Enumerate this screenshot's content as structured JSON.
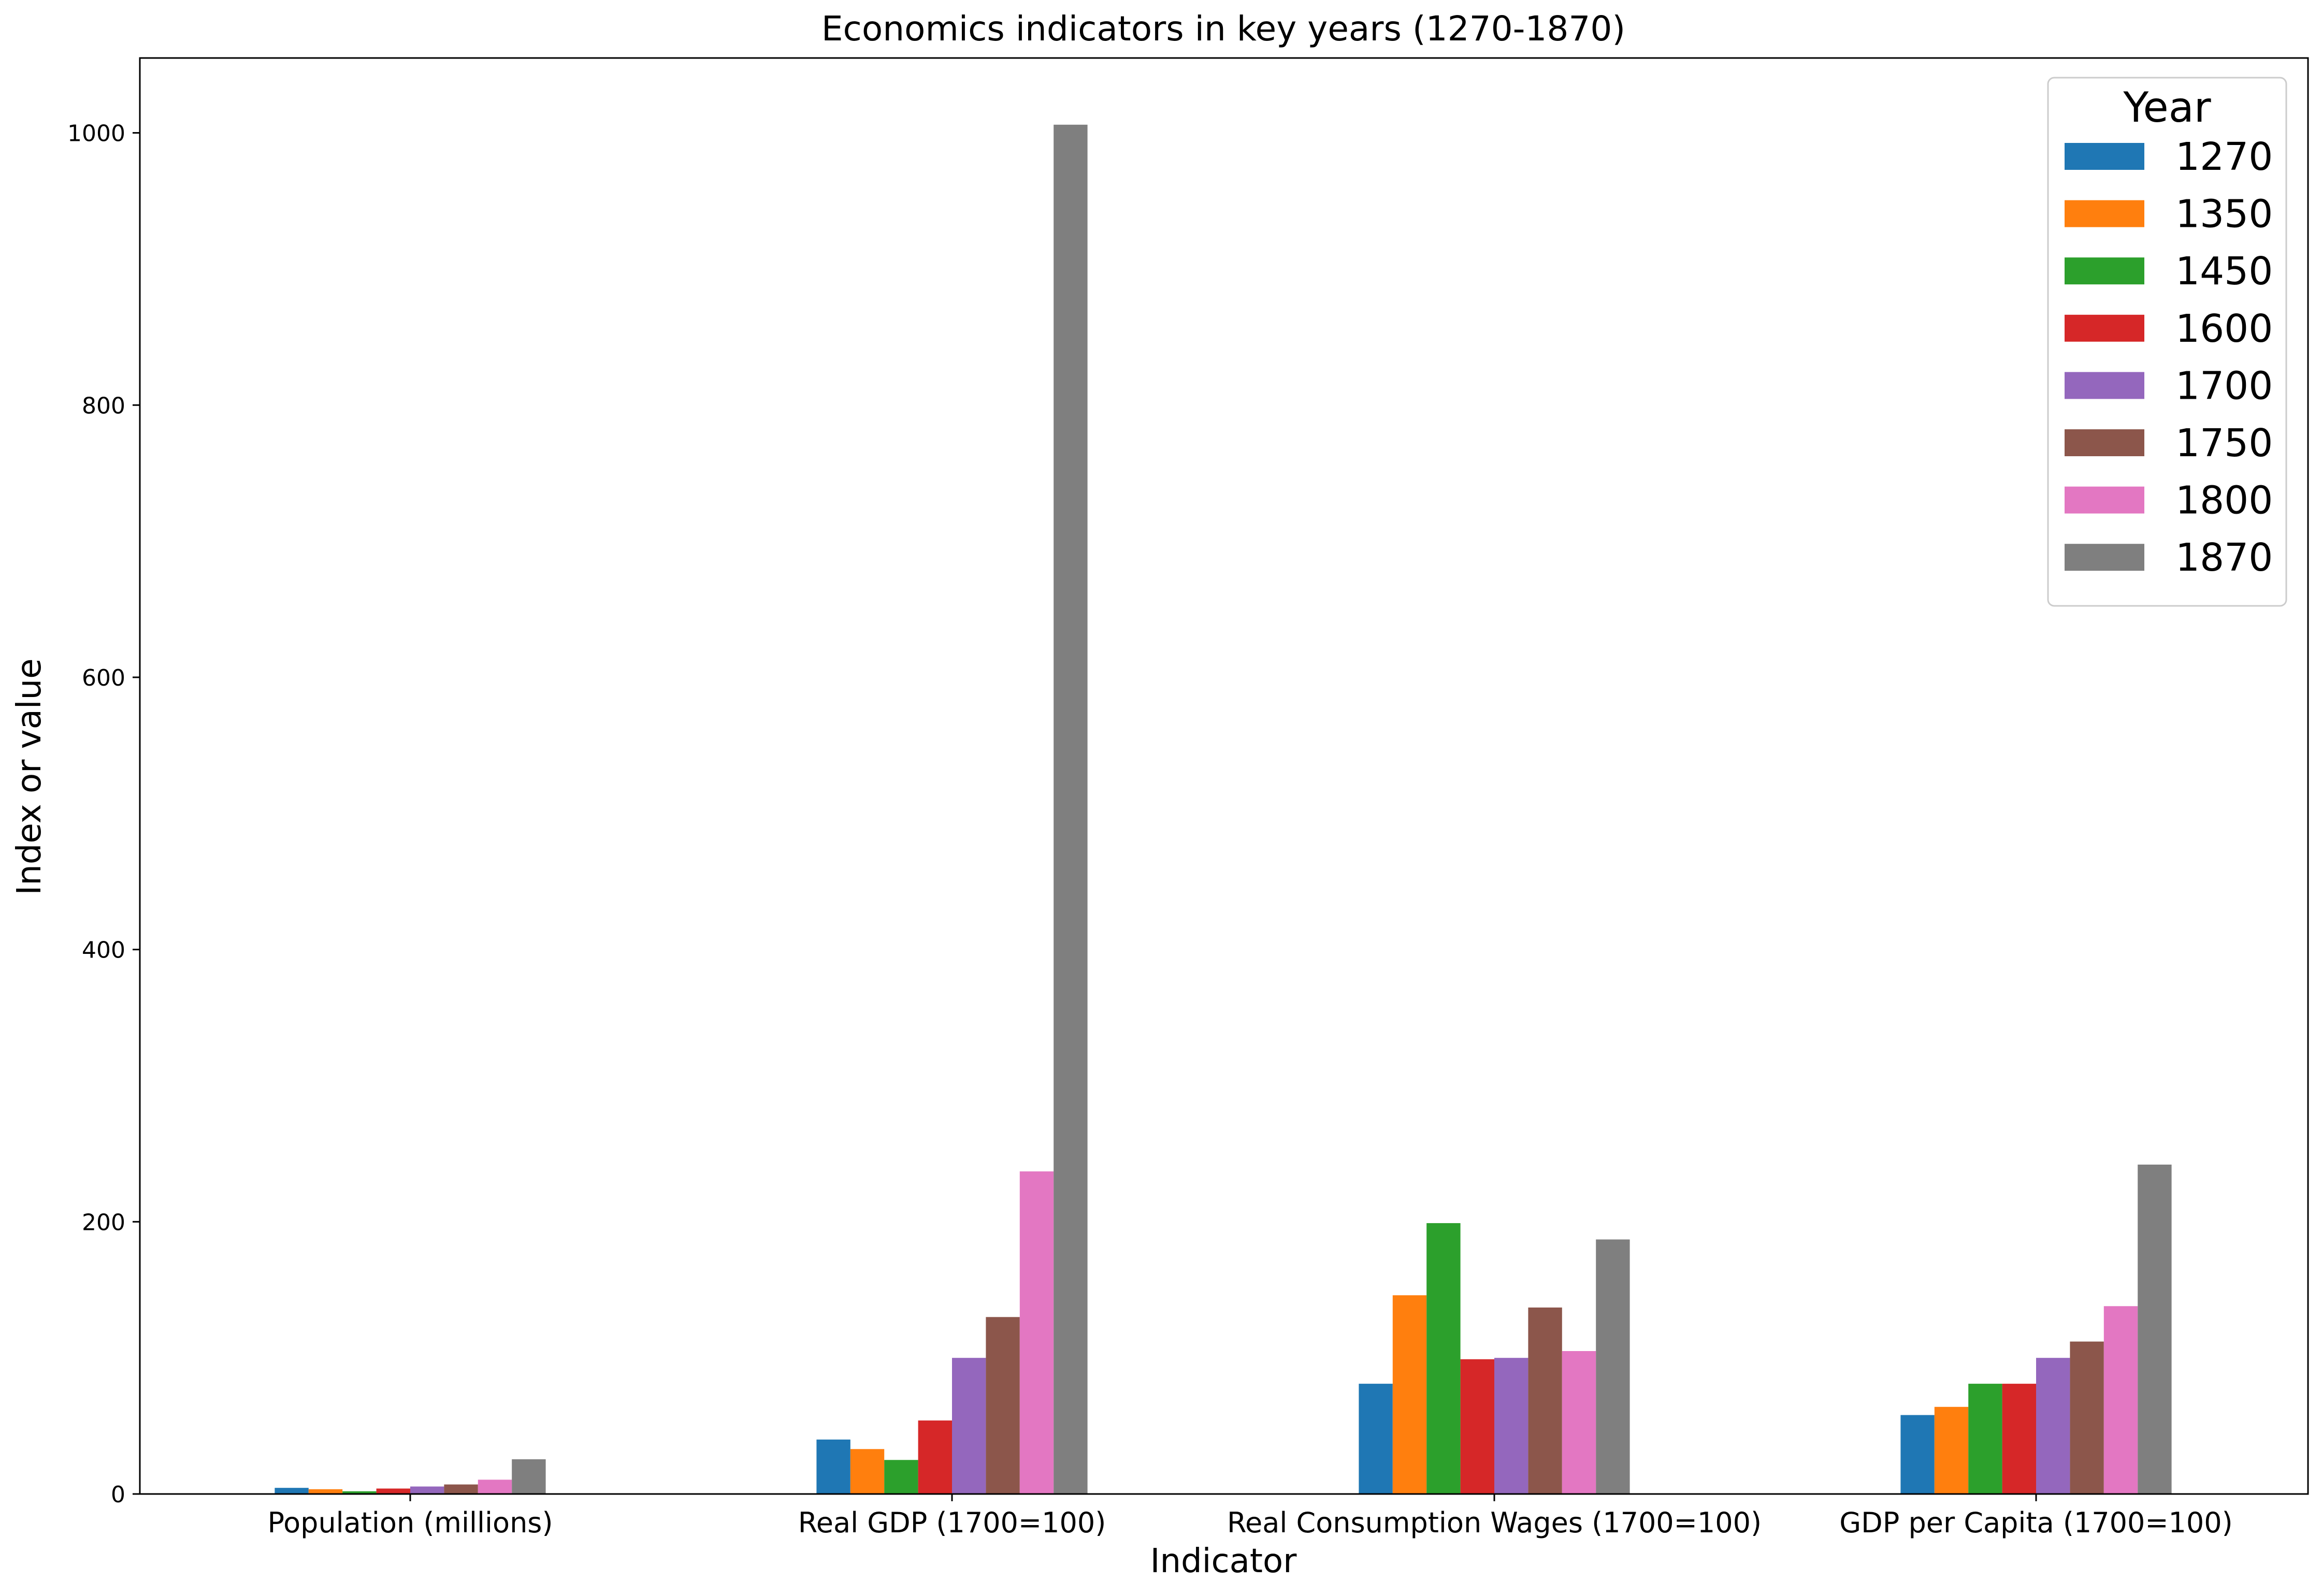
{
  "chart_data": {
    "type": "bar",
    "title": "Economics indicators in key years (1270-1870)",
    "xlabel": "Indicator",
    "ylabel": "Index or value",
    "ylim": [
      0,
      1055
    ],
    "yticks": [
      0,
      200,
      400,
      600,
      800,
      1000
    ],
    "grid": false,
    "legend": {
      "title": "Year",
      "position": "top-right"
    },
    "categories": [
      "Population (millions)",
      "Real GDP (1700=100)",
      "Real Consumption Wages (1700=100)",
      "GDP per Capita (1700=100)"
    ],
    "series": [
      {
        "name": "1270",
        "color": "#1f77b4",
        "values": [
          4.5,
          40,
          81,
          58
        ]
      },
      {
        "name": "1350",
        "color": "#ff7f0e",
        "values": [
          3.5,
          33,
          146,
          64
        ]
      },
      {
        "name": "1450",
        "color": "#2ca02c",
        "values": [
          2,
          25,
          199,
          81
        ]
      },
      {
        "name": "1600",
        "color": "#d62728",
        "values": [
          4,
          54,
          99,
          81
        ]
      },
      {
        "name": "1700",
        "color": "#9467bd",
        "values": [
          5.5,
          100,
          100,
          100
        ]
      },
      {
        "name": "1750",
        "color": "#8c564b",
        "values": [
          7,
          130,
          137,
          112
        ]
      },
      {
        "name": "1800",
        "color": "#e377c2",
        "values": [
          10.5,
          237,
          105,
          138
        ]
      },
      {
        "name": "1870",
        "color": "#7f7f7f",
        "values": [
          25.5,
          1006,
          187,
          242
        ]
      }
    ]
  }
}
